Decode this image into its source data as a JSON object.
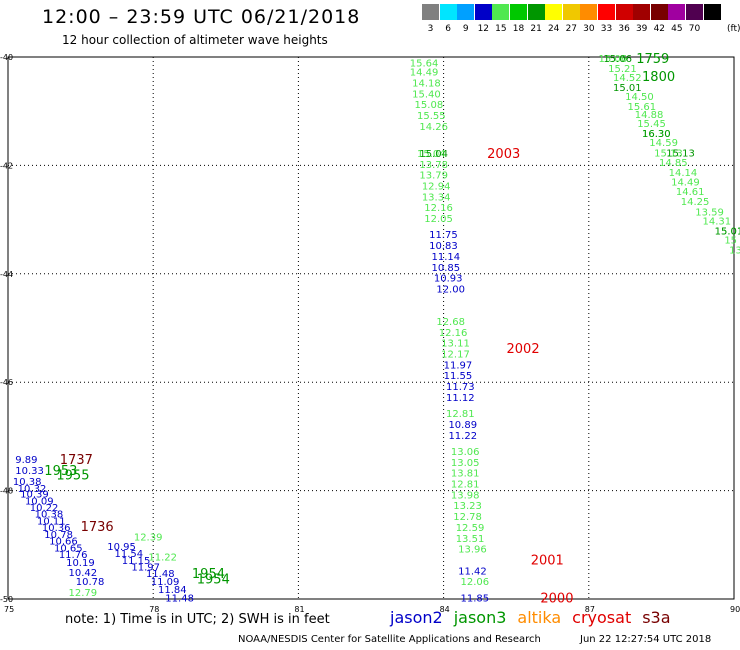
{
  "header": {
    "title": "12:00 – 23:59 UTC 06/21/2018",
    "subtitle": "12 hour collection of altimeter wave heights"
  },
  "color_scale": {
    "unit": "(ft)",
    "bins": [
      {
        "label": "3",
        "color": "#808080"
      },
      {
        "label": "6",
        "color": "#00e5ff"
      },
      {
        "label": "9",
        "color": "#00a0ff"
      },
      {
        "label": "12",
        "color": "#0000c8"
      },
      {
        "label": "15",
        "color": "#50e850"
      },
      {
        "label": "18",
        "color": "#00c800"
      },
      {
        "label": "21",
        "color": "#009600"
      },
      {
        "label": "24",
        "color": "#ffff00"
      },
      {
        "label": "27",
        "color": "#f0c800"
      },
      {
        "label": "30",
        "color": "#ff8c00"
      },
      {
        "label": "33",
        "color": "#ff0000"
      },
      {
        "label": "36",
        "color": "#d00000"
      },
      {
        "label": "39",
        "color": "#a00000"
      },
      {
        "label": "42",
        "color": "#780000"
      },
      {
        "label": "45",
        "color": "#a000a0"
      },
      {
        "label": "70",
        "color": "#500050"
      },
      {
        "label": "",
        "color": "#000000"
      }
    ]
  },
  "footer": {
    "note": "note:  1) Time is in UTC;  2) SWH is in feet",
    "legend": [
      {
        "label": "jason2",
        "color": "#0000c8"
      },
      {
        "label": "jason3",
        "color": "#009600"
      },
      {
        "label": "altika",
        "color": "#ff8c00"
      },
      {
        "label": "cryosat",
        "color": "#e00000"
      },
      {
        "label": "s3a",
        "color": "#780000"
      }
    ],
    "credit": "NOAA/NESDIS Center for Satellite Applications and Research",
    "timestamp": "Jun 22 12:27:54 UTC 2018"
  },
  "chart_data": {
    "type": "scatter",
    "xlim": [
      75,
      90
    ],
    "ylim": [
      -50,
      -40
    ],
    "x_ticks": [
      "75",
      "78",
      "81",
      "84",
      "87",
      "90"
    ],
    "y_ticks": [
      "-40",
      "-42",
      "-44",
      "-46",
      "-48",
      "-50"
    ],
    "grid": true,
    "time_labels": [
      {
        "text": "1759",
        "x": 87.98,
        "y": -40.02,
        "color": "#009600"
      },
      {
        "text": "1800",
        "x": 88.1,
        "y": -40.35,
        "color": "#009600"
      },
      {
        "text": "2003",
        "x": 84.9,
        "y": -41.77,
        "color": "#e00000"
      },
      {
        "text": "2002",
        "x": 85.3,
        "y": -45.37,
        "color": "#e00000"
      },
      {
        "text": "2001",
        "x": 85.8,
        "y": -49.27,
        "color": "#e00000"
      },
      {
        "text": "2000",
        "x": 86.0,
        "y": -49.97,
        "color": "#e00000"
      },
      {
        "text": "1737",
        "x": 76.07,
        "y": -47.42,
        "color": "#780000"
      },
      {
        "text": "1953",
        "x": 75.75,
        "y": -47.62,
        "color": "#009600"
      },
      {
        "text": "1955",
        "x": 76.0,
        "y": -47.7,
        "color": "#009600"
      },
      {
        "text": "1736",
        "x": 76.5,
        "y": -48.65,
        "color": "#780000"
      },
      {
        "text": "1954",
        "x": 78.8,
        "y": -49.52,
        "color": "#009600"
      },
      {
        "text": "1954",
        "x": 78.9,
        "y": -49.62,
        "color": "#009600"
      }
    ],
    "series": [
      {
        "name": "jason3",
        "color": "#50e850",
        "points": [
          {
            "x": 87.2,
            "y": -40.02,
            "v": "15.06"
          },
          {
            "x": 87.4,
            "y": -40.2,
            "v": "15.21"
          },
          {
            "x": 87.5,
            "y": -40.37,
            "v": "14.52"
          },
          {
            "x": 87.75,
            "y": -40.72,
            "v": "14.50"
          },
          {
            "x": 87.8,
            "y": -40.9,
            "v": "15.61"
          },
          {
            "x": 87.95,
            "y": -41.05,
            "v": "14.88"
          },
          {
            "x": 88.0,
            "y": -41.22,
            "v": "15.45"
          },
          {
            "x": 88.1,
            "y": -41.4,
            "v": "16.30"
          },
          {
            "x": 88.25,
            "y": -41.57,
            "v": "14.59"
          },
          {
            "x": 88.35,
            "y": -41.76,
            "v": "15.13"
          },
          {
            "x": 88.45,
            "y": -41.94,
            "v": "14.85"
          },
          {
            "x": 88.65,
            "y": -42.12,
            "v": "14.14"
          },
          {
            "x": 88.7,
            "y": -42.3,
            "v": "14.49"
          },
          {
            "x": 88.8,
            "y": -42.47,
            "v": "14.61"
          },
          {
            "x": 88.9,
            "y": -42.66,
            "v": "14.25"
          },
          {
            "x": 89.2,
            "y": -42.85,
            "v": "13.59"
          },
          {
            "x": 89.35,
            "y": -43.02,
            "v": "14.31"
          },
          {
            "x": 89.6,
            "y": -43.2,
            "v": "15.01"
          },
          {
            "x": 89.8,
            "y": -43.37,
            "v": "15"
          },
          {
            "x": 89.9,
            "y": -43.55,
            "v": "13"
          },
          {
            "x": 83.3,
            "y": -40.1,
            "v": "15.64"
          },
          {
            "x": 83.3,
            "y": -40.27,
            "v": "14.49"
          },
          {
            "x": 83.35,
            "y": -40.47,
            "v": "14.18"
          },
          {
            "x": 83.35,
            "y": -40.67,
            "v": "15.40"
          },
          {
            "x": 83.4,
            "y": -40.87,
            "v": "15.08"
          },
          {
            "x": 83.45,
            "y": -41.07,
            "v": "15.55"
          },
          {
            "x": 83.5,
            "y": -41.27,
            "v": "14.26"
          },
          {
            "x": 83.45,
            "y": -41.77,
            "v": "15.04"
          },
          {
            "x": 83.5,
            "y": -41.97,
            "v": "13.78"
          },
          {
            "x": 83.5,
            "y": -42.17,
            "v": "13.79"
          },
          {
            "x": 83.55,
            "y": -42.37,
            "v": "12.94"
          },
          {
            "x": 83.55,
            "y": -42.57,
            "v": "13.34"
          },
          {
            "x": 83.6,
            "y": -42.77,
            "v": "12.16"
          },
          {
            "x": 83.6,
            "y": -42.97,
            "v": "12.05"
          },
          {
            "x": 83.85,
            "y": -44.87,
            "v": "12.68"
          },
          {
            "x": 83.9,
            "y": -45.07,
            "v": "12.16"
          },
          {
            "x": 83.95,
            "y": -45.27,
            "v": "13.11"
          },
          {
            "x": 83.95,
            "y": -45.47,
            "v": "12.17"
          },
          {
            "x": 84.05,
            "y": -46.57,
            "v": "12.81"
          },
          {
            "x": 84.15,
            "y": -47.27,
            "v": "13.06"
          },
          {
            "x": 84.15,
            "y": -47.47,
            "v": "13.05"
          },
          {
            "x": 84.15,
            "y": -47.67,
            "v": "13.81"
          },
          {
            "x": 84.15,
            "y": -47.87,
            "v": "12.81"
          },
          {
            "x": 84.15,
            "y": -48.07,
            "v": "13.98"
          },
          {
            "x": 84.2,
            "y": -48.27,
            "v": "13.23"
          },
          {
            "x": 84.2,
            "y": -48.47,
            "v": "12.78"
          },
          {
            "x": 84.25,
            "y": -48.67,
            "v": "12.59"
          },
          {
            "x": 84.25,
            "y": -48.87,
            "v": "13.51"
          },
          {
            "x": 84.3,
            "y": -49.07,
            "v": "13.96"
          },
          {
            "x": 84.35,
            "y": -49.67,
            "v": "12.06"
          },
          {
            "x": 77.6,
            "y": -48.85,
            "v": "12.39"
          },
          {
            "x": 77.9,
            "y": -49.22,
            "v": "11.22"
          },
          {
            "x": 76.25,
            "y": -49.87,
            "v": "12.79"
          }
        ]
      },
      {
        "name": "jason2",
        "color": "#0000c8",
        "points": [
          {
            "x": 83.7,
            "y": -43.27,
            "v": "11.75"
          },
          {
            "x": 83.7,
            "y": -43.47,
            "v": "10.83"
          },
          {
            "x": 83.75,
            "y": -43.67,
            "v": "11.14"
          },
          {
            "x": 83.75,
            "y": -43.87,
            "v": "10.85"
          },
          {
            "x": 83.8,
            "y": -44.07,
            "v": "10.93"
          },
          {
            "x": 83.85,
            "y": -44.27,
            "v": "12.00"
          },
          {
            "x": 84.0,
            "y": -45.67,
            "v": "11.97"
          },
          {
            "x": 84.0,
            "y": -45.87,
            "v": "11.55"
          },
          {
            "x": 84.05,
            "y": -46.07,
            "v": "11.73"
          },
          {
            "x": 84.05,
            "y": -46.27,
            "v": "11.12"
          },
          {
            "x": 84.1,
            "y": -46.77,
            "v": "10.89"
          },
          {
            "x": 84.1,
            "y": -46.97,
            "v": "11.22"
          },
          {
            "x": 84.3,
            "y": -49.47,
            "v": "11.42"
          },
          {
            "x": 84.35,
            "y": -49.97,
            "v": "11.85"
          },
          {
            "x": 75.15,
            "y": -47.42,
            "v": "9.89"
          },
          {
            "x": 75.15,
            "y": -47.62,
            "v": "10.33"
          },
          {
            "x": 75.1,
            "y": -47.82,
            "v": "10.38"
          },
          {
            "x": 75.2,
            "y": -47.95,
            "v": "10.32"
          },
          {
            "x": 75.25,
            "y": -48.05,
            "v": "10.39"
          },
          {
            "x": 75.35,
            "y": -48.18,
            "v": "10.09"
          },
          {
            "x": 75.45,
            "y": -48.3,
            "v": "10.22"
          },
          {
            "x": 75.55,
            "y": -48.42,
            "v": "10.38"
          },
          {
            "x": 75.6,
            "y": -48.55,
            "v": "10.11"
          },
          {
            "x": 75.7,
            "y": -48.67,
            "v": "10.36"
          },
          {
            "x": 75.75,
            "y": -48.8,
            "v": "10.78"
          },
          {
            "x": 75.85,
            "y": -48.92,
            "v": "10.66"
          },
          {
            "x": 75.95,
            "y": -49.05,
            "v": "10.65"
          },
          {
            "x": 76.05,
            "y": -49.17,
            "v": "11.76"
          },
          {
            "x": 76.2,
            "y": -49.32,
            "v": "10.19"
          },
          {
            "x": 76.25,
            "y": -49.5,
            "v": "10.42"
          },
          {
            "x": 76.4,
            "y": -49.67,
            "v": "10.78"
          },
          {
            "x": 77.05,
            "y": -49.02,
            "v": "10.95"
          },
          {
            "x": 77.2,
            "y": -49.15,
            "v": "11.54"
          },
          {
            "x": 77.35,
            "y": -49.28,
            "v": "11.15"
          },
          {
            "x": 77.55,
            "y": -49.4,
            "v": "11.97"
          },
          {
            "x": 77.85,
            "y": -49.52,
            "v": "11.48"
          },
          {
            "x": 77.95,
            "y": -49.67,
            "v": "11.09"
          },
          {
            "x": 78.1,
            "y": -49.82,
            "v": "11.84"
          },
          {
            "x": 78.25,
            "y": -49.97,
            "v": "11.48"
          }
        ]
      },
      {
        "name": "jason3",
        "color": "#009600",
        "points": [
          {
            "x": 83.5,
            "y": -41.77,
            "v": "15.04"
          },
          {
            "x": 87.3,
            "y": -40.02,
            "v": "15.06"
          },
          {
            "x": 87.5,
            "y": -40.55,
            "v": "15.01"
          },
          {
            "x": 88.1,
            "y": -41.4,
            "v": "16.30"
          },
          {
            "x": 88.6,
            "y": -41.76,
            "v": "15.13"
          },
          {
            "x": 89.6,
            "y": -43.2,
            "v": "15.01"
          }
        ]
      }
    ]
  }
}
